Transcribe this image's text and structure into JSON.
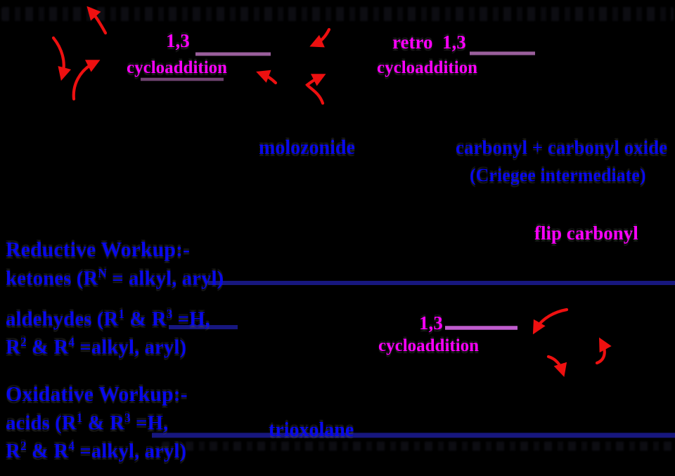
{
  "colors": {
    "background": "#000000",
    "magenta": "#FF00FF",
    "label_blue": "#0808EE",
    "navy_arrow": "#17177F",
    "plum_arrow": "#9A5F9C",
    "orchid_arrow": "#C05CCE",
    "red_arrow": "#EE1010"
  },
  "labels": {
    "cycloaddition1": {
      "line1": "1,3",
      "line2": "cycloaddition"
    },
    "retro": {
      "line1": "retro  1,3",
      "line2": "cycloaddition"
    },
    "molozonide": "molozonide",
    "carbonyl": "carbonyl + carbonyl oxide",
    "criegee": "(Criegee intermediate)",
    "flip_carbonyl": "flip carbonyl",
    "cycloaddition2": {
      "line1": "1,3",
      "line2": "cycloaddition"
    },
    "trioxolane": "trioxolane",
    "reductive": {
      "title": "Reductive Workup:-",
      "ketones": [
        {
          "t": "ketones (R"
        },
        {
          "sup": "N"
        },
        {
          "t": " = alkyl, aryl)"
        }
      ],
      "aldehydes_line1": [
        {
          "t": "aldehydes (R"
        },
        {
          "sup": "1"
        },
        {
          "t": " & R"
        },
        {
          "sup": "3"
        },
        {
          "t": " =H,"
        }
      ],
      "aldehydes_line2": [
        {
          "t": "R"
        },
        {
          "sup": "2"
        },
        {
          "t": " & R"
        },
        {
          "sup": "4"
        },
        {
          "t": " =alkyl, aryl)"
        }
      ]
    },
    "oxidative": {
      "title": "Oxidative Workup:-",
      "acids_line1": [
        {
          "t": "acids (R"
        },
        {
          "sup": "1"
        },
        {
          "t": " & R"
        },
        {
          "sup": "3"
        },
        {
          "t": " =H,"
        }
      ],
      "acids_line2": [
        {
          "t": "R"
        },
        {
          "sup": "2"
        },
        {
          "t": " & R"
        },
        {
          "sup": "4"
        },
        {
          "t": " =alkyl, aryl)"
        }
      ]
    }
  }
}
